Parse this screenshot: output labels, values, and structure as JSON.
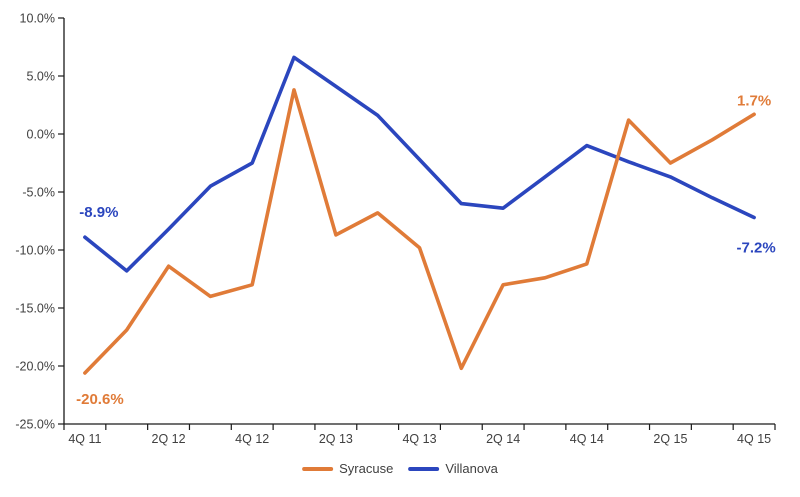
{
  "chart_data": {
    "type": "line",
    "title": "",
    "xlabel": "",
    "ylabel": "",
    "categories": [
      "4Q 11",
      "1Q 12",
      "2Q 12",
      "3Q 12",
      "4Q 12",
      "1Q 13",
      "2Q 13",
      "3Q 13",
      "4Q 13",
      "1Q 14",
      "2Q 14",
      "3Q 14",
      "4Q 14",
      "1Q 15",
      "2Q 15",
      "3Q 15",
      "4Q 15"
    ],
    "x_tick_labels": [
      "4Q 11",
      "2Q 12",
      "4Q 12",
      "2Q 13",
      "4Q 13",
      "2Q 14",
      "4Q 14",
      "2Q 15",
      "4Q 15"
    ],
    "y_tick_labels": [
      "10.0%",
      "5.0%",
      "0.0%",
      "-5.0%",
      "-10.0%",
      "-15.0%",
      "-20.0%",
      "-25.0%"
    ],
    "ylim": [
      -25,
      10
    ],
    "y_tick_step": 5,
    "grid": false,
    "legend_position": "bottom-center",
    "axis_color": "#1a1a1a",
    "tick_label_color": "#404040",
    "series": [
      {
        "name": "Villanova",
        "color": "#2B46BE",
        "values": [
          -8.9,
          -11.8,
          -8.2,
          -4.5,
          -2.5,
          6.6,
          4.1,
          1.6,
          -2.2,
          -6.0,
          -6.4,
          -3.7,
          -1.0,
          -2.4,
          -3.7,
          -5.5,
          -7.2
        ]
      },
      {
        "name": "Syracuse",
        "color": "#E07B38",
        "values": [
          -20.6,
          -16.9,
          -11.4,
          -14.0,
          -13.0,
          3.8,
          -8.7,
          -6.8,
          -9.8,
          -20.2,
          -13.0,
          -12.4,
          -11.2,
          1.2,
          -2.5,
          -0.5,
          1.7
        ]
      }
    ],
    "annotations": [
      {
        "text": "-8.9%",
        "series": "Villanova",
        "point": "4Q 11",
        "color": "#2B46BE",
        "position": "above-right"
      },
      {
        "text": "-20.6%",
        "series": "Syracuse",
        "point": "4Q 11",
        "color": "#E07B38",
        "position": "below-right"
      },
      {
        "text": "1.7%",
        "series": "Syracuse",
        "point": "4Q 15",
        "color": "#E07B38",
        "position": "above"
      },
      {
        "text": "-7.2%",
        "series": "Villanova",
        "point": "4Q 15",
        "color": "#2B46BE",
        "position": "below"
      }
    ]
  },
  "legend": {
    "items": [
      {
        "label": "Syracuse",
        "color": "#E07B38"
      },
      {
        "label": "Villanova",
        "color": "#2B46BE"
      }
    ]
  }
}
